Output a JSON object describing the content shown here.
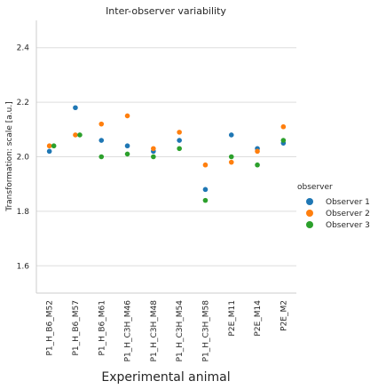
{
  "chart_data": {
    "type": "scatter",
    "title": "Inter-observer variability",
    "xlabel": "Experimental animal",
    "ylabel": "Transformation: scale  [a.u.]",
    "categories": [
      "P1_H_B6_M52",
      "P1_H_B6_M57",
      "P1_H_B6_M61",
      "P1_H_C3H_M46",
      "P1_H_C3H_M48",
      "P1_H_C3H_M54",
      "P1_H_C3H_M58",
      "P2E_M11",
      "P2E_M14",
      "P2E_M2"
    ],
    "ylim": [
      1.5,
      2.5
    ],
    "yticks": [
      "1.6",
      "1.8",
      "2.0",
      "2.2",
      "2.4"
    ],
    "grid": "horizontal",
    "legend_title": "observer",
    "legend_position": "right",
    "series": [
      {
        "name": "Observer 1",
        "color": "#1f77b4",
        "values": [
          2.02,
          2.18,
          2.06,
          2.04,
          2.02,
          2.06,
          1.88,
          2.08,
          2.03,
          2.05
        ]
      },
      {
        "name": "Observer 2",
        "color": "#ff7f0e",
        "values": [
          2.04,
          2.08,
          2.12,
          2.15,
          2.03,
          2.09,
          1.97,
          1.98,
          2.02,
          2.11
        ]
      },
      {
        "name": "Observer 3",
        "color": "#2ca02c",
        "values": [
          2.04,
          2.08,
          2.0,
          2.01,
          2.0,
          2.03,
          1.84,
          2.0,
          1.97,
          2.06
        ]
      }
    ]
  }
}
